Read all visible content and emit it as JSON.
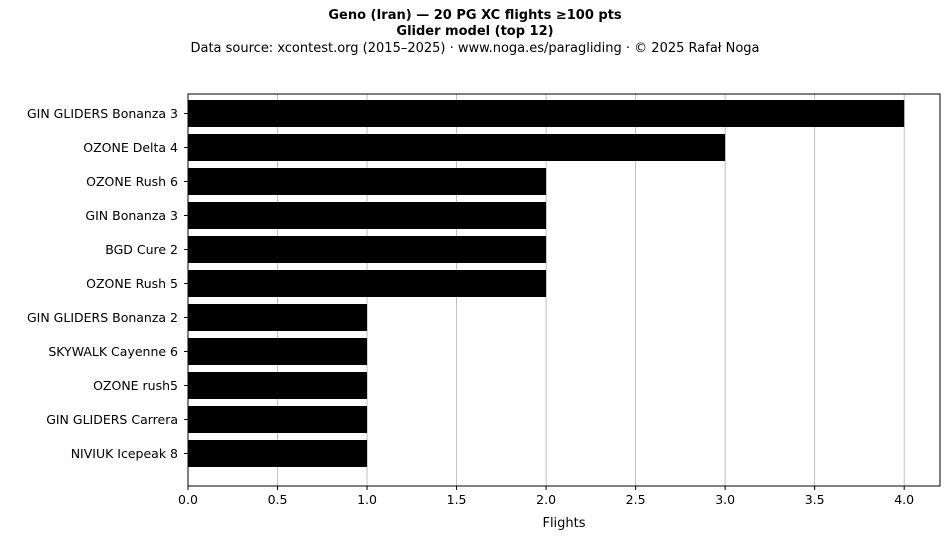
{
  "header": {
    "title": "Geno (Iran)  —  20 PG XC flights ≥100 pts",
    "subtitle": "Glider model (top 12)",
    "source": "Data source: xcontest.org (2015–2025)  ·  www.noga.es/paragliding  ·  © 2025 Rafał Noga"
  },
  "chart_data": {
    "type": "bar",
    "orientation": "horizontal",
    "title": "Geno (Iran)  —  20 PG XC flights ≥100 pts",
    "subtitle": "Glider model (top 12)",
    "xlabel": "Flights",
    "ylabel": "",
    "categories": [
      "GIN GLIDERS Bonanza 3",
      "OZONE Delta 4",
      "OZONE Rush 6",
      "GIN Bonanza 3",
      "BGD Cure 2",
      "OZONE Rush 5",
      "GIN GLIDERS Bonanza 2",
      "SKYWALK Cayenne 6",
      "OZONE rush5",
      "GIN GLIDERS Carrera",
      "NIVIUK Icepeak 8"
    ],
    "values": [
      4,
      3,
      2,
      2,
      2,
      2,
      1,
      1,
      1,
      1,
      1
    ],
    "xlim": [
      0,
      4.2
    ],
    "xticks": [
      "0.0",
      "0.5",
      "1.0",
      "1.5",
      "2.0",
      "2.5",
      "3.0",
      "3.5",
      "4.0"
    ],
    "grid": "x",
    "bar_color": "#000000"
  }
}
